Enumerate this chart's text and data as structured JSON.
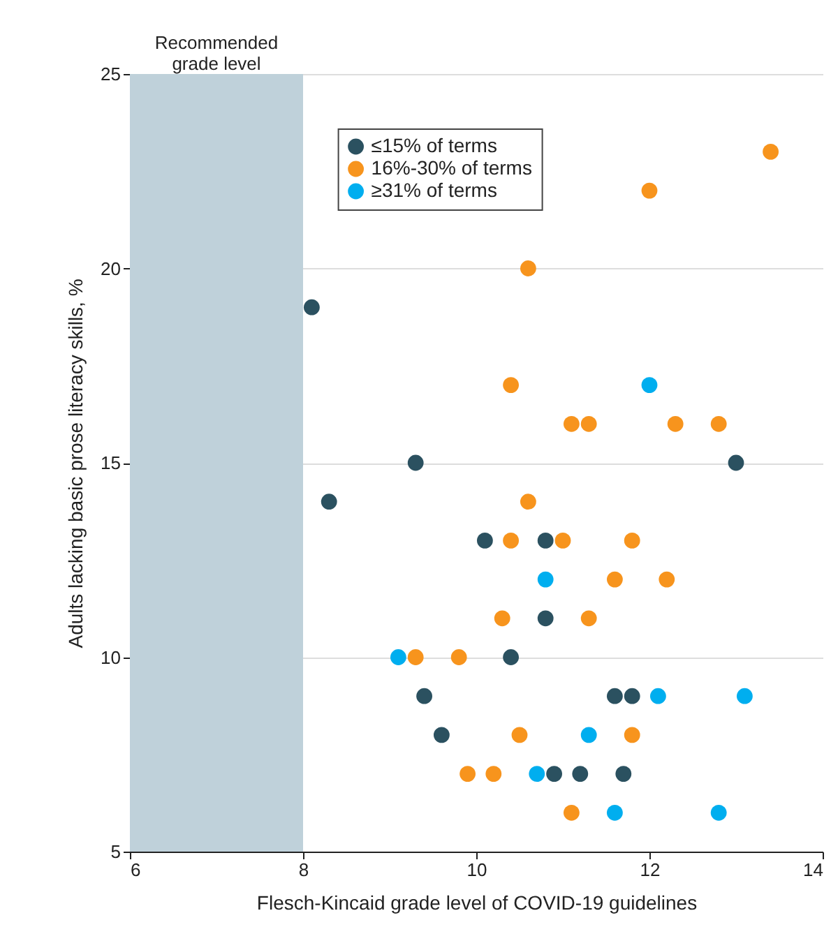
{
  "chart_data": {
    "type": "scatter",
    "xlabel": "Flesch-Kincaid grade level of COVID-19 guidelines",
    "ylabel": "Adults lacking basic prose literacy skills, %",
    "xlim": [
      6,
      14
    ],
    "xticks": [
      6,
      8,
      10,
      12,
      14
    ],
    "ylim": [
      5,
      25
    ],
    "yticks": [
      5,
      10,
      15,
      20,
      25
    ],
    "grid": "y",
    "legend": "top left",
    "marker": "circle",
    "bands": [
      {
        "axis": "x",
        "from": 6,
        "to": 8,
        "label": "Recommended\ngrade level",
        "color": "#bfd1da"
      }
    ],
    "series": [
      {
        "name": "≤15% of terms",
        "color": "#2b5160",
        "x": [
          8.1,
          9.3,
          8.3,
          10.1,
          10.8,
          10.8,
          10.4,
          9.4,
          11.6,
          11.8,
          9.6,
          10.9,
          11.2,
          11.7,
          13.0
        ],
        "values": [
          19,
          15,
          14,
          13,
          13,
          11,
          10,
          9,
          9,
          9,
          8,
          7,
          7,
          7,
          15
        ]
      },
      {
        "name": "16%-30% of terms",
        "color": "#f7941d",
        "x": [
          13.4,
          12.0,
          10.6,
          10.4,
          11.1,
          11.3,
          12.3,
          12.8,
          10.6,
          10.4,
          11.0,
          11.8,
          11.6,
          12.2,
          10.3,
          11.3,
          9.3,
          9.8,
          10.5,
          11.8,
          9.9,
          10.2,
          11.1
        ],
        "values": [
          23,
          22,
          20,
          17,
          16,
          16,
          16,
          16,
          14,
          13,
          13,
          13,
          12,
          12,
          11,
          11,
          10,
          10,
          8,
          8,
          7,
          7,
          6
        ]
      },
      {
        "name": "≥31% of terms",
        "color": "#00aeef",
        "x": [
          12.0,
          10.8,
          9.1,
          12.1,
          13.1,
          11.3,
          10.7,
          11.6,
          12.8
        ],
        "values": [
          17,
          12,
          10,
          9,
          9,
          8,
          7,
          6,
          6
        ]
      }
    ]
  }
}
